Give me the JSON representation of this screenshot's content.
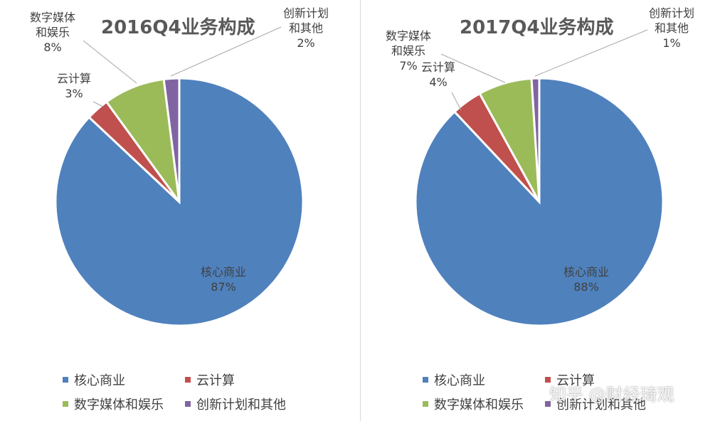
{
  "chart_data": [
    {
      "type": "pie",
      "title": "2016Q4业务构成",
      "categories": [
        "核心商业",
        "云计算",
        "数字媒体和娱乐",
        "创新计划和其他"
      ],
      "values": [
        87,
        3,
        8,
        2
      ],
      "unit": "%",
      "data_labels": [
        {
          "name": "核心商业",
          "value": "87%"
        },
        {
          "name": "云计算",
          "value": "3%"
        },
        {
          "name_lines": [
            "数字媒体",
            "和娱乐"
          ],
          "value": "8%"
        },
        {
          "name_lines": [
            "创新计划",
            "和其他"
          ],
          "value": "2%"
        }
      ],
      "legend": [
        "核心商业",
        "云计算",
        "数字媒体和娱乐",
        "创新计划和其他"
      ],
      "legend_position": "bottom"
    },
    {
      "type": "pie",
      "title": "2017Q4业务构成",
      "categories": [
        "核心商业",
        "云计算",
        "数字媒体和娱乐",
        "创新计划和其他"
      ],
      "values": [
        88,
        4,
        7,
        1
      ],
      "unit": "%",
      "data_labels": [
        {
          "name": "核心商业",
          "value": "88%"
        },
        {
          "name": "云计算",
          "value": "4%"
        },
        {
          "name_lines": [
            "数字媒体",
            "和娱乐"
          ],
          "value": "7%"
        },
        {
          "name_lines": [
            "创新计划",
            "和其他"
          ],
          "value": "1%"
        }
      ],
      "legend": [
        "核心商业",
        "云计算",
        "数字媒体和娱乐",
        "创新计划和其他"
      ],
      "legend_position": "bottom"
    }
  ],
  "colors": [
    "#4F81BD",
    "#C0504D",
    "#9BBB59",
    "#8064A2"
  ],
  "watermark": "知乎 @财经琦观"
}
